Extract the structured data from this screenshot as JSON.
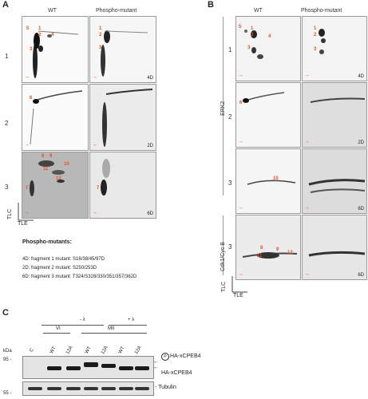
{
  "panel_a": {
    "label": "A",
    "col_wt": "WT",
    "col_mut": "Phospho-mutant",
    "rows": [
      {
        "label": "1",
        "tag": "4D"
      },
      {
        "label": "2",
        "tag": "2D"
      },
      {
        "label": "3",
        "tag": "6D"
      }
    ],
    "spots_wt1": [
      "5",
      "1",
      "2",
      "4",
      "3"
    ],
    "spots_mut1": [
      "1",
      "2",
      "3"
    ],
    "spots_wt2": [
      "6"
    ],
    "spots_wt3": [
      "8",
      "9",
      "10",
      "11",
      "12",
      "7"
    ],
    "spots_mut3": [
      "7"
    ],
    "axis_tlc": "TLC",
    "axis_tle": "TLE"
  },
  "legend": {
    "title": "Phospho-mutants:",
    "lines": [
      "4D: fragment 1 mutant: S16/38/45/97D",
      "2D: fragment 2 mutant: S250/253D",
      "6D: fragment 3 mutant: T324/S328/330/351/357/362D"
    ]
  },
  "panel_b": {
    "label": "B",
    "col_wt": "WT",
    "col_mut": "Phospho-mutant",
    "rows": [
      {
        "label": "1",
        "tag": "4D"
      },
      {
        "label": "2",
        "tag": "2D"
      },
      {
        "label": "3",
        "tag": "6D"
      },
      {
        "label": "3",
        "tag": "6D"
      }
    ],
    "kinase_erk2": "ERK2",
    "kinase_cdk": "Cdk1/Cyc B",
    "spots_wt1": [
      "5",
      "1",
      "2",
      "4",
      "3"
    ],
    "spots_mut1": [
      "1",
      "2",
      "3"
    ],
    "spots_wt2": [
      "6"
    ],
    "spots_wt3": [
      "10"
    ],
    "spots_wt4": [
      "8",
      "9",
      "12",
      "11"
    ],
    "axis_tlc": "TLC",
    "axis_tle": "TLE"
  },
  "panel_c": {
    "label": "C",
    "group_minus": "- λ",
    "group_plus": "+ λ",
    "group_vi": "VI",
    "group_mii": "MII",
    "lanes": [
      "C",
      "WT",
      "12A",
      "WT",
      "12A",
      "WT",
      "12A"
    ],
    "kda": "kDa",
    "marker_95": "95 -",
    "marker_55": "55 -",
    "label_phospho": "HA-xCPEB4",
    "label_phospho_prefix": "P",
    "label_ha": "HA-xCPEB4",
    "label_tubulin": "Tubulin"
  }
}
